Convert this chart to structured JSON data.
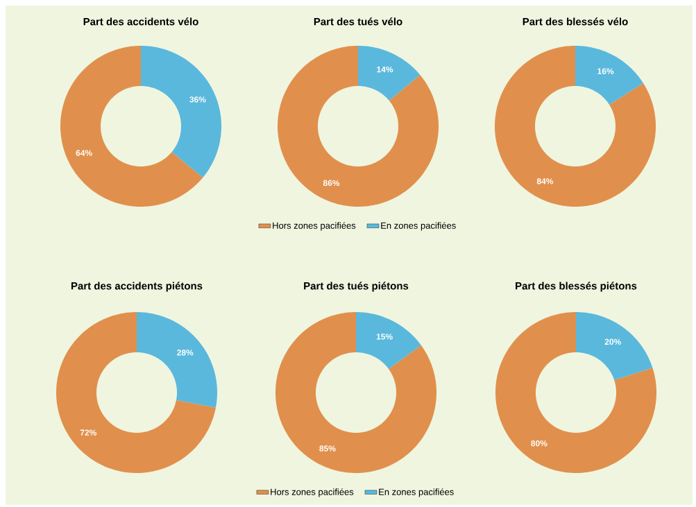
{
  "chart_data": [
    {
      "type": "donut",
      "title": "Part des accidents vélo",
      "categories": [
        null,
        null
      ],
      "values": [
        64,
        36
      ],
      "colors": [
        "#e0904c",
        "#5ab8dc"
      ],
      "value_labels": [
        "64%",
        "36%"
      ]
    },
    {
      "type": "donut",
      "title": "Part des tués vélo",
      "categories": [
        "Hors zones pacifiées",
        "En zones pacifiées"
      ],
      "values": [
        86,
        14
      ],
      "colors": [
        "#e0904c",
        "#5ab8dc"
      ],
      "value_labels": [
        "86%",
        "14%"
      ],
      "legend": "bottom"
    },
    {
      "type": "donut",
      "title": "Part des blessés vélo",
      "categories": [
        null,
        null
      ],
      "values": [
        84,
        16
      ],
      "colors": [
        "#e0904c",
        "#5ab8dc"
      ],
      "value_labels": [
        "84%",
        "16%"
      ]
    },
    {
      "type": "donut",
      "title": "Part des accidents piétons",
      "categories": [
        null,
        null
      ],
      "values": [
        72,
        28
      ],
      "colors": [
        "#e0904c",
        "#5ab8dc"
      ],
      "value_labels": [
        "72%",
        "28%"
      ]
    },
    {
      "type": "donut",
      "title": "Part des tués piétons",
      "categories": [
        "Hors zones pacifiées",
        "En zones pacifiées"
      ],
      "values": [
        85,
        15
      ],
      "colors": [
        "#e0904c",
        "#5ab8dc"
      ],
      "value_labels": [
        "85%",
        "15%"
      ],
      "legend": "bottom"
    },
    {
      "type": "donut",
      "title": "Part des blessés piétons",
      "categories": [
        null,
        null
      ],
      "values": [
        80,
        20
      ],
      "colors": [
        "#e0904c",
        "#5ab8dc"
      ],
      "value_labels": [
        "80%",
        "20%"
      ]
    }
  ]
}
